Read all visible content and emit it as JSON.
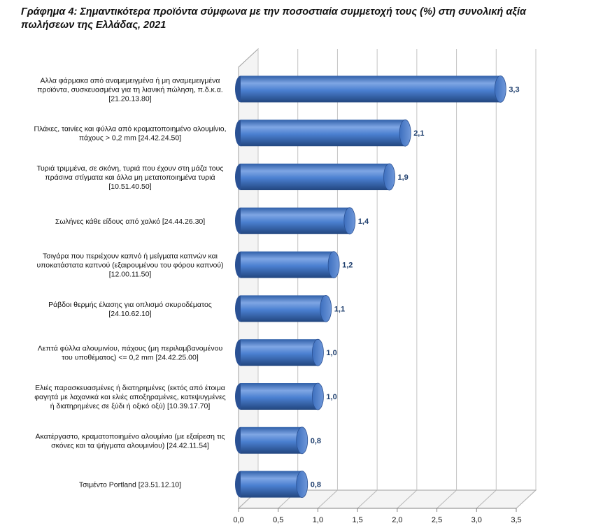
{
  "title": "Γράφημα 4: Σημαντικότερα προϊόντα σύμφωνα με την ποσοστιαία συμμετοχή τους (%) στη συνολική αξία πωλήσεων της Ελλάδας, 2021",
  "chart_data": {
    "type": "bar",
    "orientation": "horizontal",
    "title": "Γράφημα 4: Σημαντικότερα προϊόντα σύμφωνα με την ποσοστιαία συμμετοχή τους (%) στη συνολική αξία πωλήσεων της Ελλάδας, 2021",
    "xlabel": "",
    "ylabel": "",
    "xlim": [
      0,
      3.5
    ],
    "x_ticks": [
      "0,0",
      "0,5",
      "1,0",
      "1,5",
      "2,0",
      "2,5",
      "3,0",
      "3,5"
    ],
    "grid": true,
    "bar_color": "#4a7fd0",
    "label_color": "#1f3f6e",
    "categories": [
      [
        "Αλλα φάρμακα από αναμεμειγμένα ή μη αναμεμειγμένα",
        "προϊόντα, συσκευασμένα για τη λιανική πώληση, π.δ.κ.α.",
        "[21.20.13.80]"
      ],
      [
        "Πλάκες, ταινίες και φύλλα από κραματοποιημένο αλουμίνιο,",
        "πάχους > 0,2 mm [24.42.24.50]"
      ],
      [
        "Τυριά τριμμένα, σε σκόνη, τυριά που έχουν στη μάζα τους",
        "πράσινα στίγματα και άλλα μη μετατοποιημένα τυριά",
        "[10.51.40.50]"
      ],
      [
        "Σωλήνες κάθε είδους από χαλκό [24.44.26.30]"
      ],
      [
        "Τσιγάρα που περιέχουν καπνό ή μείγματα καπνών και",
        "υποκατάστατα καπνού (εξαιρουμένου του φόρου καπνού)",
        "[12.00.11.50]"
      ],
      [
        "Ράβδοι θερμής έλασης για οπλισμό σκυροδέματος",
        "[24.10.62.10]"
      ],
      [
        "Λεπτά φύλλα αλουμινίου, πάχους (μη περιλαμβανομένου",
        "του υποθέματος) <= 0,2 mm [24.42.25.00]"
      ],
      [
        "Ελιές παρασκευασμένες ή διατηρημένες (εκτός από έτοιμα",
        "φαγητά με λαχανικά και ελιές αποξηραμένες, κατεψυγμένες",
        "ή διατηρημένες σε ξύδι ή οξικό οξύ) [10.39.17.70]"
      ],
      [
        "Ακατέργαστο, κραματοποιημένο αλουμίνιο (με εξαίρεση τις",
        "σκόνες και τα ψήγματα αλουμινίου) [24.42.11.54]"
      ],
      [
        "Τσιμέντο Portland [23.51.12.10]"
      ]
    ],
    "values": [
      3.3,
      2.1,
      1.9,
      1.4,
      1.2,
      1.1,
      1.0,
      1.0,
      0.8,
      0.8
    ],
    "value_labels": [
      "3,3",
      "2,1",
      "1,9",
      "1,4",
      "1,2",
      "1,1",
      "1,0",
      "1,0",
      "0,8",
      "0,8"
    ]
  }
}
